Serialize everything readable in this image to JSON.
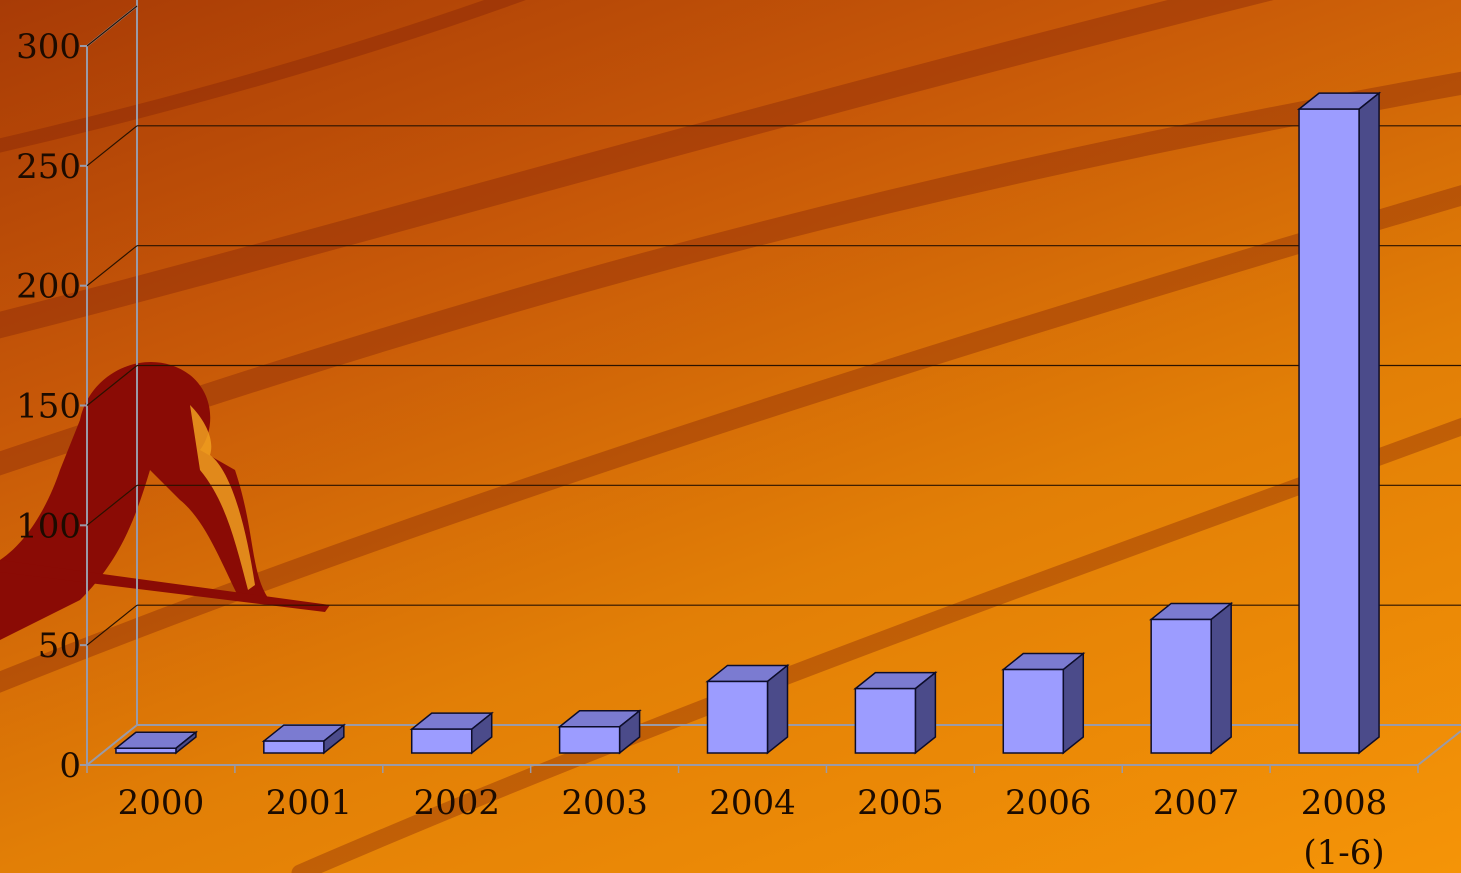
{
  "chart_data": {
    "type": "bar",
    "categories": [
      [
        "2000"
      ],
      [
        "2001"
      ],
      [
        "2002"
      ],
      [
        "2003"
      ],
      [
        "2004"
      ],
      [
        "2005"
      ],
      [
        "2006"
      ],
      [
        "2007"
      ],
      [
        "2008",
        "(1-6)"
      ]
    ],
    "values": [
      2,
      5,
      10,
      11,
      30,
      27,
      35,
      56,
      270
    ],
    "ylim": [
      0,
      300
    ],
    "yticks": [
      0,
      50,
      100,
      150,
      200,
      250,
      300
    ],
    "grid": true,
    "style": "3d-column",
    "colors": {
      "bar_front": "#9c9cff",
      "bar_top": "#7b7bd1",
      "bar_side": "#4b4b8a",
      "bar_outline": "#0d0d2a",
      "gridline": "#2a1200",
      "frame": "#9a9aa8",
      "text": "#1c0b00"
    }
  },
  "decoration": {
    "figure_icon": "sprinter-silhouette-icon",
    "colors": {
      "figure": "#8a0b05",
      "figure_highlight": "#f0a020",
      "swoosh": "#7a1e08"
    }
  }
}
